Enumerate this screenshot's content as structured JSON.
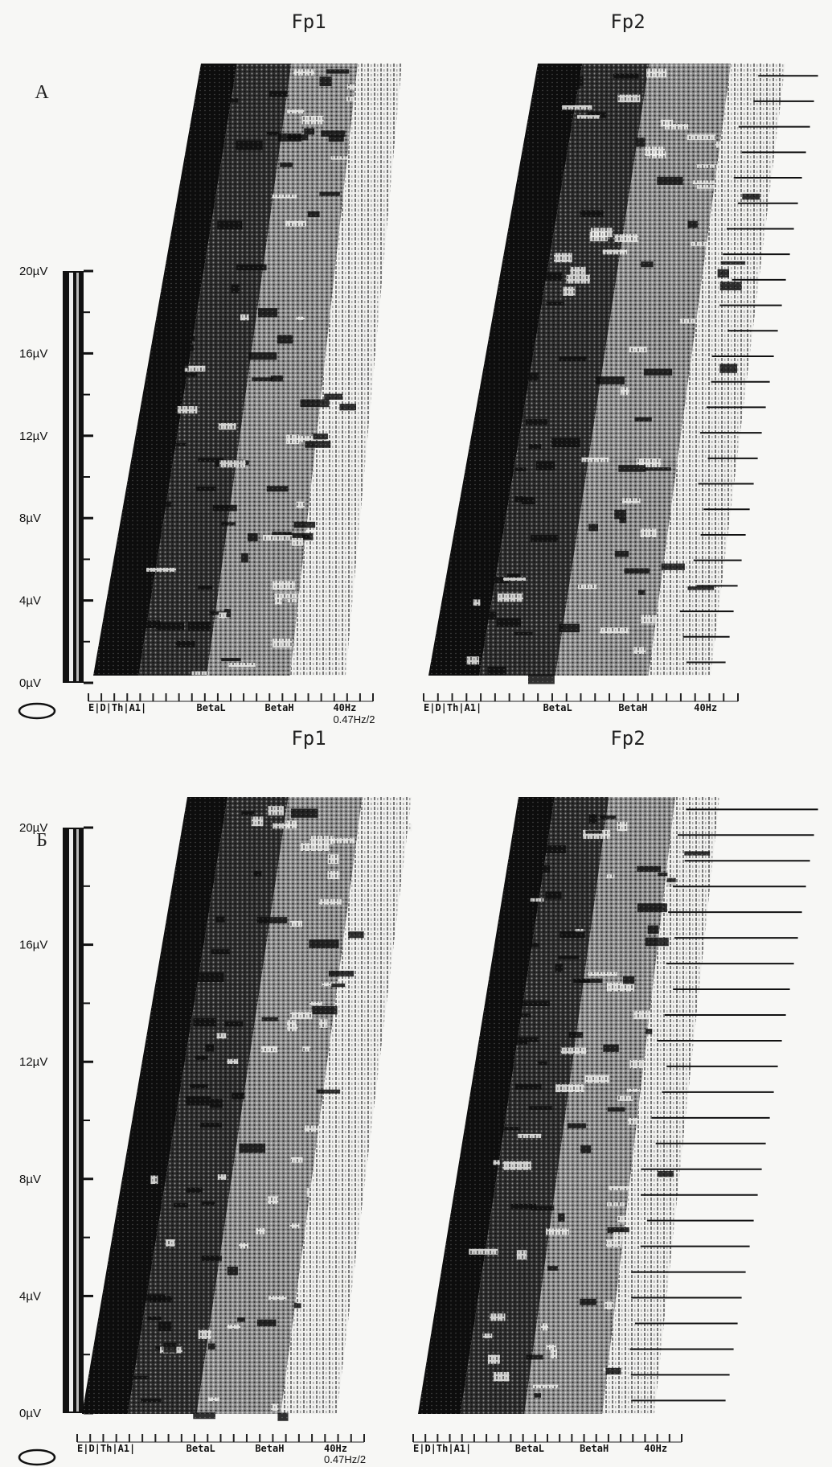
{
  "panels": [
    {
      "label": "A",
      "scale": [
        "20µV",
        "16µV",
        "12µV",
        "8µV",
        "4µV",
        "0µV"
      ],
      "leads": [
        {
          "title": "Fp1",
          "axis": [
            "E|D|Th|A1|",
            "BetaL",
            "BetaH",
            "40Hz"
          ],
          "resolution": "0.47Hz/2"
        },
        {
          "title": "Fp2",
          "axis": [
            "E|D|Th|A1|",
            "BetaL",
            "BetaH",
            "40Hz"
          ]
        }
      ]
    },
    {
      "label": "Б",
      "scale": [
        "20µV",
        "16µV",
        "12µV",
        "8µV",
        "4µV",
        "0µV"
      ],
      "leads": [
        {
          "title": "Fp1",
          "axis": [
            "E|D|Th|A1|",
            "BetaL",
            "BetaH",
            "40Hz"
          ],
          "resolution": "0.47Hz/2"
        },
        {
          "title": "Fp2",
          "axis": [
            "E|D|Th|A1|",
            "BetaL",
            "BetaH",
            "40Hz"
          ]
        }
      ]
    }
  ]
}
